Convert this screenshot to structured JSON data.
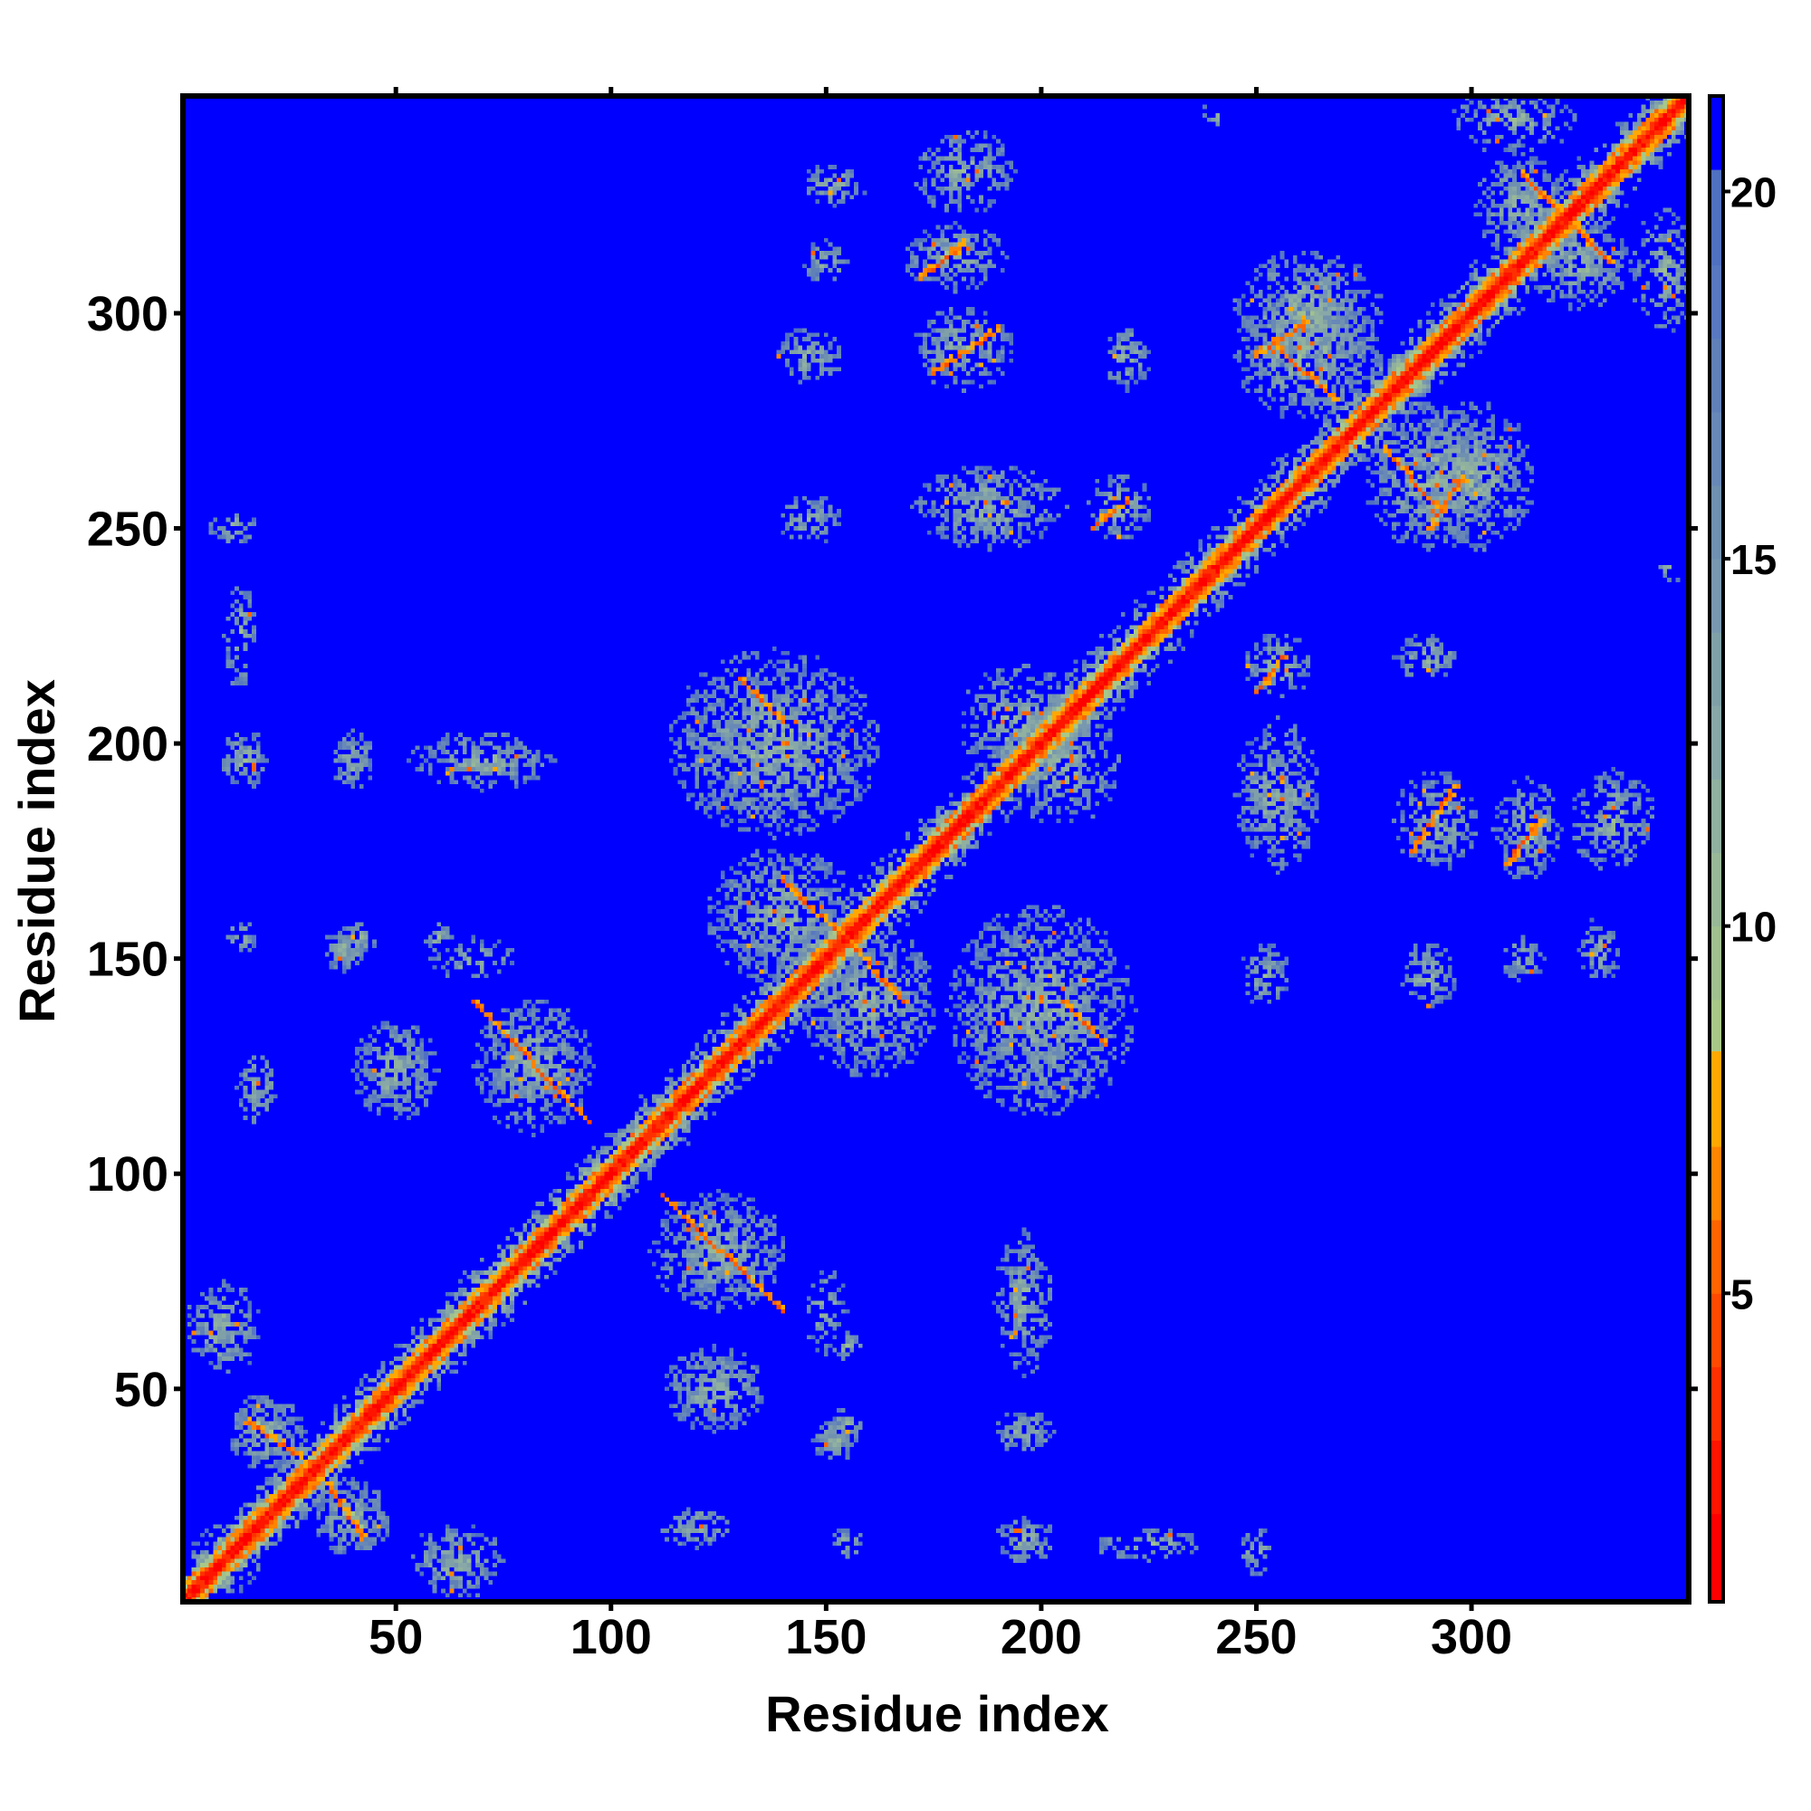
{
  "chart_data": {
    "type": "heatmap",
    "title": "",
    "xlabel": "Residue index",
    "ylabel": "Residue index",
    "xlim": [
      0.5,
      350.5
    ],
    "ylim": [
      0.5,
      350.5
    ],
    "n_residues": 350,
    "xticks": [
      50,
      100,
      150,
      200,
      250,
      300
    ],
    "yticks": [
      50,
      100,
      150,
      200,
      250,
      300
    ],
    "colorbar": {
      "range": [
        0.8,
        21.3
      ],
      "ticks": [
        5,
        10,
        15,
        20
      ],
      "steps": [
        {
          "max": 2,
          "color": "#ff0000"
        },
        {
          "max": 3,
          "color": "#ff1400"
        },
        {
          "max": 4,
          "color": "#ff3000"
        },
        {
          "max": 5,
          "color": "#ff4a00"
        },
        {
          "max": 6,
          "color": "#ff6400"
        },
        {
          "max": 7,
          "color": "#ff8400"
        },
        {
          "max": 8.3,
          "color": "#ffa800"
        },
        {
          "max": 9,
          "color": "#a8c888"
        },
        {
          "max": 10,
          "color": "#a0c090"
        },
        {
          "max": 11,
          "color": "#98b898"
        },
        {
          "max": 12,
          "color": "#90b0a0"
        },
        {
          "max": 13,
          "color": "#88a8a8"
        },
        {
          "max": 14,
          "color": "#80a0a8"
        },
        {
          "max": 15,
          "color": "#7898b0"
        },
        {
          "max": 16,
          "color": "#7090b0"
        },
        {
          "max": 17,
          "color": "#6888b8"
        },
        {
          "max": 18,
          "color": "#6080b8"
        },
        {
          "max": 19,
          "color": "#5878c0"
        },
        {
          "max": 20.3,
          "color": "#5070c0"
        },
        {
          "max": 99,
          "color": "#0000ff"
        }
      ]
    },
    "background_value": 21,
    "contact_clusters": [
      {
        "x": 124,
        "y": 50,
        "rx": 12,
        "ry": 10,
        "density": 0.8
      },
      {
        "x": 125,
        "y": 82,
        "rx": 16,
        "ry": 14,
        "density": 0.75,
        "strand": [
          112,
          95,
          140,
          68
        ]
      },
      {
        "x": 196,
        "y": 70,
        "rx": 7,
        "ry": 17,
        "density": 0.7
      },
      {
        "x": 196,
        "y": 40,
        "rx": 7,
        "ry": 5,
        "density": 0.8
      },
      {
        "x": 196,
        "y": 15,
        "rx": 7,
        "ry": 6,
        "density": 0.75
      },
      {
        "x": 152,
        "y": 38,
        "rx": 5,
        "ry": 5,
        "density": 0.8
      },
      {
        "x": 120,
        "y": 18,
        "rx": 9,
        "ry": 5,
        "density": 0.6
      },
      {
        "x": 225,
        "y": 14,
        "rx": 13,
        "ry": 4,
        "density": 0.45
      },
      {
        "x": 150,
        "y": 68,
        "rx": 5,
        "ry": 10,
        "density": 0.4
      },
      {
        "x": 64,
        "y": 10,
        "rx": 11,
        "ry": 9,
        "density": 0.7
      },
      {
        "x": 40,
        "y": 20,
        "rx": 9,
        "ry": 9,
        "density": 0.75,
        "strand": [
          34,
          28,
          42,
          16
        ]
      },
      {
        "x": 200,
        "y": 138,
        "rx": 22,
        "ry": 25,
        "density": 0.7,
        "strand": [
          205,
          140,
          215,
          130
        ]
      },
      {
        "x": 160,
        "y": 140,
        "rx": 16,
        "ry": 18,
        "density": 0.7,
        "strand": [
          152,
          157,
          168,
          140
        ]
      },
      {
        "x": 255,
        "y": 188,
        "rx": 10,
        "ry": 18,
        "density": 0.65
      },
      {
        "x": 292,
        "y": 182,
        "rx": 10,
        "ry": 12,
        "density": 0.65,
        "strand": [
          286,
          175,
          296,
          190
        ]
      },
      {
        "x": 313,
        "y": 180,
        "rx": 8,
        "ry": 12,
        "density": 0.65,
        "strand": [
          308,
          172,
          316,
          182
        ]
      },
      {
        "x": 333,
        "y": 182,
        "rx": 10,
        "ry": 12,
        "density": 0.65
      },
      {
        "x": 252,
        "y": 146,
        "rx": 6,
        "ry": 8,
        "density": 0.6
      },
      {
        "x": 290,
        "y": 146,
        "rx": 7,
        "ry": 8,
        "density": 0.6
      },
      {
        "x": 312,
        "y": 150,
        "rx": 5,
        "ry": 6,
        "density": 0.6
      },
      {
        "x": 330,
        "y": 152,
        "rx": 5,
        "ry": 8,
        "density": 0.6
      },
      {
        "x": 290,
        "y": 220,
        "rx": 8,
        "ry": 6,
        "density": 0.55
      },
      {
        "x": 255,
        "y": 218,
        "rx": 8,
        "ry": 8,
        "density": 0.6,
        "strand": [
          250,
          212,
          256,
          220
        ]
      },
      {
        "x": 262,
        "y": 290,
        "rx": 18,
        "ry": 15,
        "density": 0.7,
        "strand": [
          255,
          292,
          268,
          280
        ]
      },
      {
        "x": 300,
        "y": 262,
        "rx": 15,
        "ry": 18,
        "density": 0.7,
        "strand": [
          290,
          250,
          298,
          262
        ]
      },
      {
        "x": 325,
        "y": 312,
        "rx": 12,
        "ry": 12,
        "density": 0.7,
        "strand": [
          316,
          328,
          332,
          312
        ]
      },
      {
        "x": 345,
        "y": 310,
        "rx": 8,
        "ry": 15,
        "density": 0.6
      },
      {
        "x": 205,
        "y": 195,
        "rx": 14,
        "ry": 14,
        "density": 0.55
      },
      {
        "x": 250,
        "y": 12,
        "rx": 4,
        "ry": 6,
        "density": 0.5
      },
      {
        "x": 155,
        "y": 14,
        "rx": 4,
        "ry": 4,
        "density": 0.5
      },
      {
        "x": 155,
        "y": 42,
        "rx": 4,
        "ry": 4,
        "density": 0.5
      },
      {
        "x": 155,
        "y": 60,
        "rx": 4,
        "ry": 4,
        "density": 0.5
      },
      {
        "x": 240,
        "y": 346,
        "rx": 3,
        "ry": 3,
        "density": 0.4
      }
    ]
  }
}
